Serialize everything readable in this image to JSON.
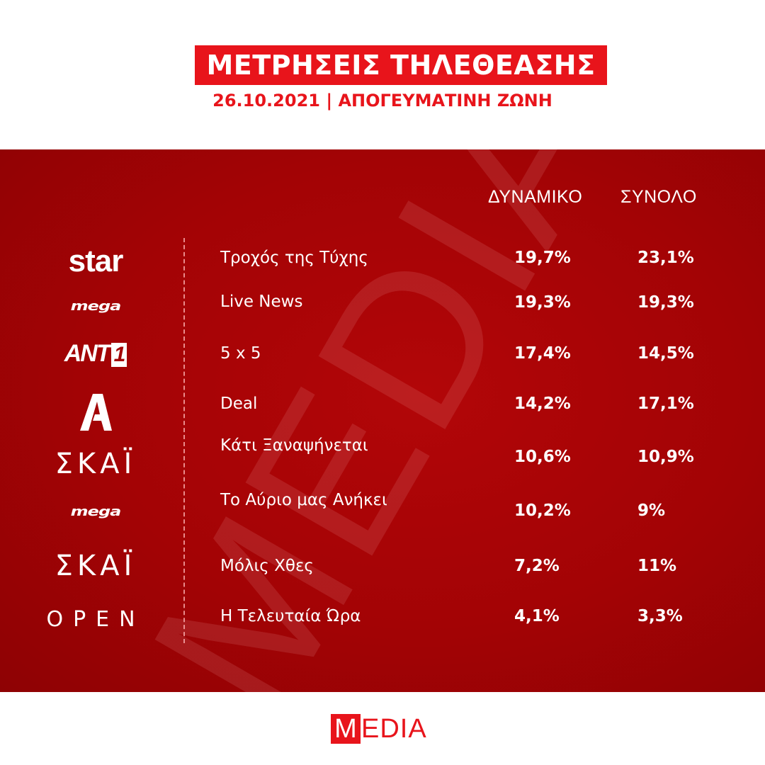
{
  "header": {
    "title": "ΜΕΤΡΗΣΕΙΣ ΤΗΛΕΘΕΑΣΗΣ",
    "subtitle": "26.10.2021 | ΑΠΟΓΕΥΜΑΤΙΝΗ ΖΩΝΗ"
  },
  "columns": {
    "dynamic": "ΔΥΝΑΜΙΚΟ",
    "total": "ΣΥΝΟΛΟ"
  },
  "rows": [
    {
      "channel": "star",
      "show": "Τροχός της Τύχης",
      "dynamic": "19,7%",
      "total": "23,1%"
    },
    {
      "channel": "MEGA",
      "show": "Live News",
      "dynamic": "19,3%",
      "total": "19,3%"
    },
    {
      "channel": "ANT1",
      "show": "5 x 5",
      "dynamic": "17,4%",
      "total": "14,5%"
    },
    {
      "channel": "Alpha",
      "show": "Deal",
      "dynamic": "14,2%",
      "total": "17,1%"
    },
    {
      "channel": "ΣΚΑΪ",
      "show": "Κάτι Ξαναψήνεται",
      "dynamic": "10,6%",
      "total": "10,9%"
    },
    {
      "channel": "MEGA",
      "show": "Το Αύριο μας Ανήκει",
      "dynamic": "10,2%",
      "total": "9%"
    },
    {
      "channel": "ΣΚΑΪ",
      "show": "Μόλις Χθες",
      "dynamic": "7,2%",
      "total": "11%"
    },
    {
      "channel": "OPEN",
      "show": "Η Τελευταία Ώρα",
      "dynamic": "4,1%",
      "total": "3,3%"
    }
  ],
  "logos": {
    "star": "star",
    "mega": "mega",
    "ant": "ANT",
    "ant_one": "1",
    "skai": "ΣΚΑΪ",
    "open": "OPEN"
  },
  "watermark": "MEDIA",
  "footer": {
    "logo_first": "M",
    "logo_rest": "EDIA"
  },
  "colors": {
    "accent": "#e8141b",
    "panel": "#a30305",
    "text_on_panel": "#ffffff"
  }
}
